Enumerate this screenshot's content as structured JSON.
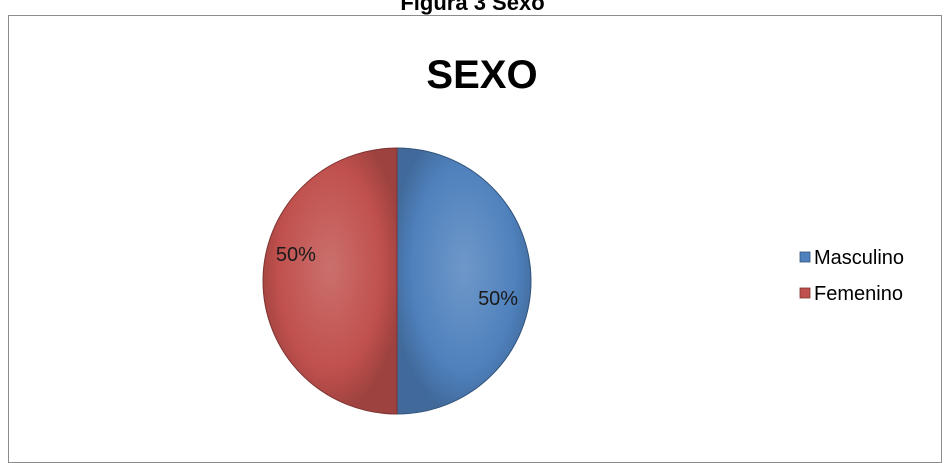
{
  "caption": "Figura 3 Sexo",
  "chart_data": {
    "type": "pie",
    "title": "SEXO",
    "categories": [
      "Masculino",
      "Femenino"
    ],
    "values": [
      50,
      50
    ],
    "labels": [
      "50%",
      "50%"
    ],
    "colors": [
      "#4f81bd",
      "#c0504d"
    ],
    "legend_position": "right"
  }
}
